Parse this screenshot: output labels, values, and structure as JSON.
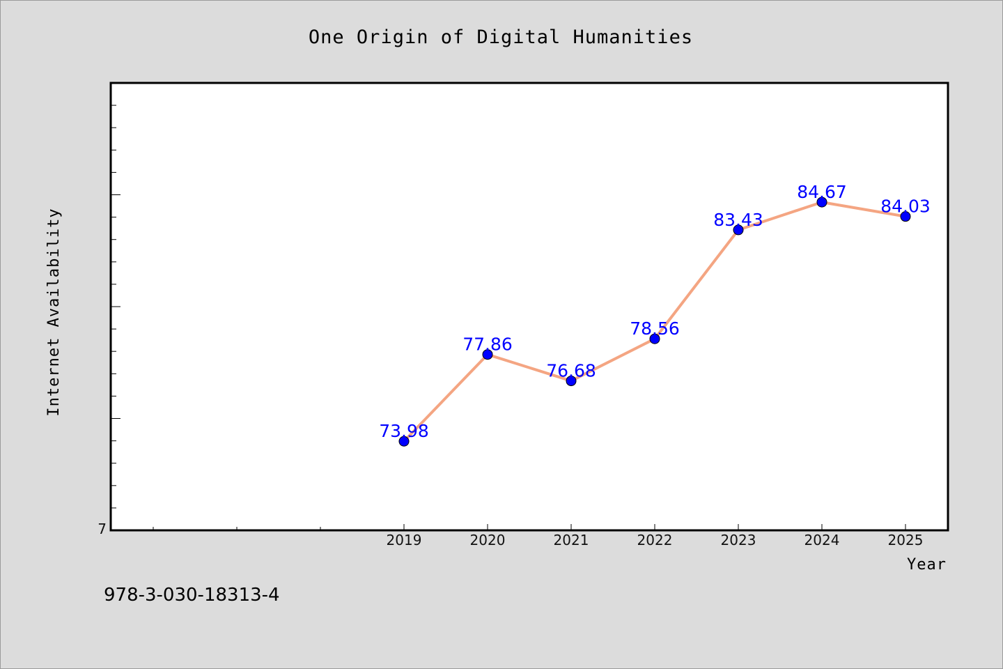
{
  "footer_text": "978-3-030-18313-4",
  "chart_data": {
    "type": "line",
    "title": "One Origin of Digital Humanities",
    "xlabel": "Year",
    "ylabel": "Internet Availability",
    "categories": [
      "2019",
      "2020",
      "2021",
      "2022",
      "2023",
      "2024",
      "2025"
    ],
    "series": [
      {
        "values": [
          73.98,
          77.86,
          76.68,
          78.56,
          83.43,
          84.67,
          84.03
        ],
        "data_labels": [
          "73.98",
          "77.86",
          "76.68",
          "78.56",
          "83.43",
          "84.67",
          "84.03"
        ],
        "line_color": "#f4a582",
        "marker_color": "#0000ff"
      }
    ],
    "y_tick_labels": [
      "7"
    ],
    "ylim": [
      70,
      90
    ],
    "grid": false,
    "legend": "none",
    "colors": {
      "background": "#dcdcdc",
      "plot_background": "#ffffff",
      "label_color": "#0000ff"
    }
  }
}
